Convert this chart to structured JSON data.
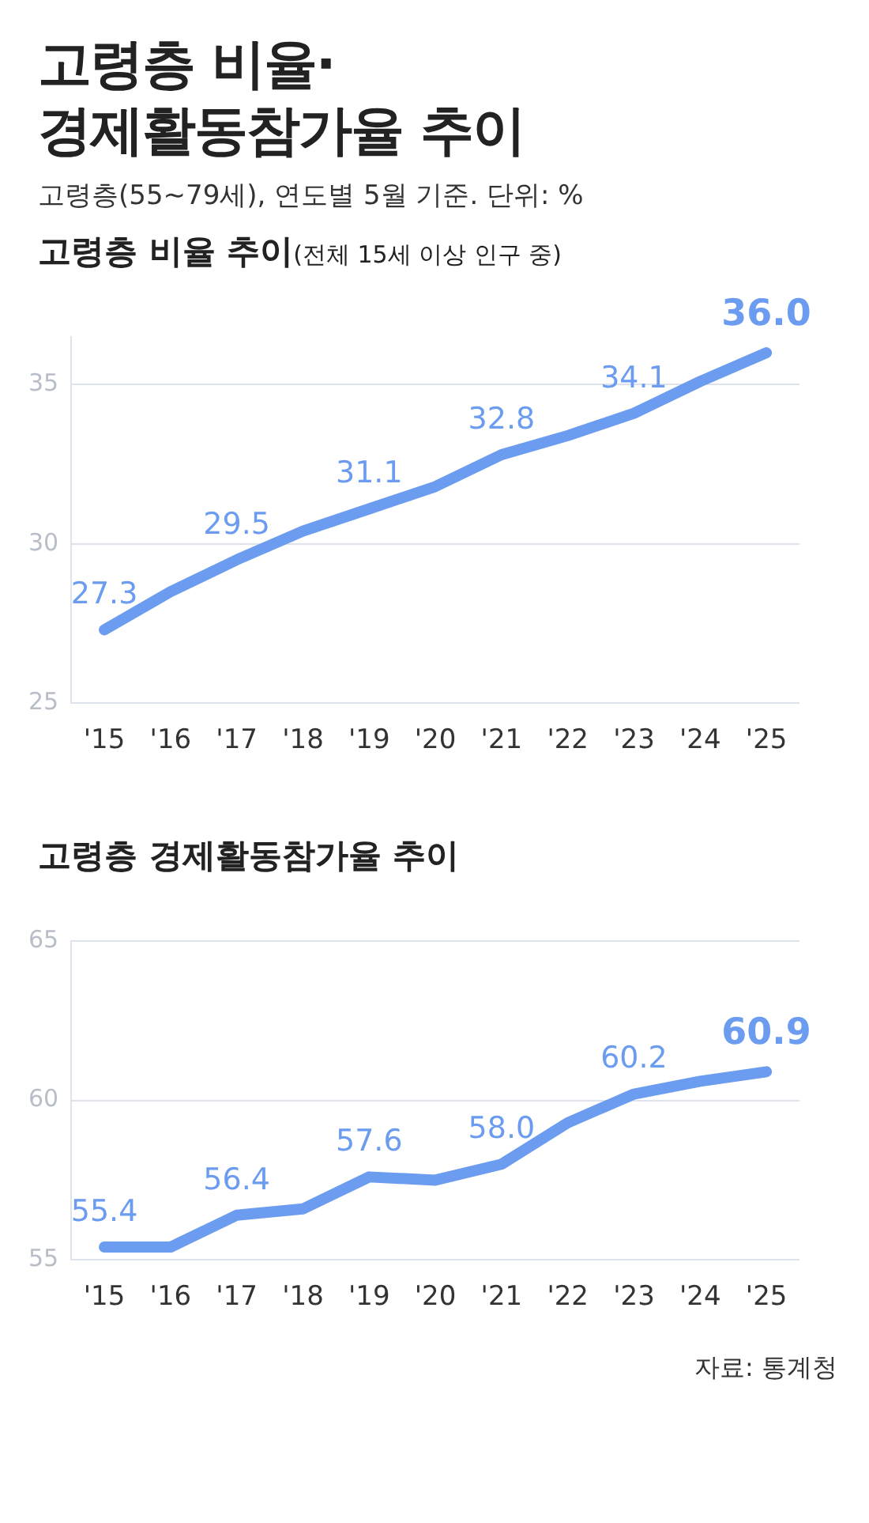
{
  "chart_data": [
    {
      "type": "line",
      "title": "고령층 비율 추이",
      "subtitle": "(전체 15세 이상 인구 중)",
      "annotations": [
        "고령층 비율·\n경제활동참가율 추이",
        "고령층(55~79세), 연도별 5월 기준. 단위: %"
      ],
      "categories": [
        "'15",
        "'16",
        "'17",
        "'18",
        "'19",
        "'20",
        "'21",
        "'22",
        "'23",
        "'24",
        "'25"
      ],
      "series": [
        {
          "color": "#6b9cf0",
          "values": [
            27.3,
            28.5,
            29.5,
            30.4,
            31.1,
            31.8,
            32.8,
            33.4,
            34.1,
            35.1,
            36.0
          ],
          "value_labels": [
            "27.3",
            null,
            "29.5",
            null,
            "31.1",
            null,
            "32.8",
            null,
            "34.1",
            null,
            "36.0"
          ]
        }
      ],
      "ylim": [
        25,
        36.5
      ],
      "yticks": [
        25,
        30,
        35
      ],
      "grid": "y",
      "marker": "none",
      "legend": false
    },
    {
      "type": "line",
      "title": "고령층 경제활동참가율 추이",
      "annotations": [
        "자료: 통계청"
      ],
      "categories": [
        "'15",
        "'16",
        "'17",
        "'18",
        "'19",
        "'20",
        "'21",
        "'22",
        "'23",
        "'24",
        "'25"
      ],
      "series": [
        {
          "color": "#6b9cf0",
          "values": [
            55.4,
            55.4,
            56.4,
            56.6,
            57.6,
            57.5,
            58.0,
            59.3,
            60.2,
            60.6,
            60.9
          ],
          "value_labels": [
            "55.4",
            null,
            "56.4",
            null,
            "57.6",
            null,
            "58.0",
            null,
            "60.2",
            null,
            "60.9"
          ]
        }
      ],
      "ylim": [
        55,
        65
      ],
      "yticks": [
        55,
        60,
        65
      ],
      "grid": "y",
      "marker": "none",
      "legend": false
    }
  ]
}
